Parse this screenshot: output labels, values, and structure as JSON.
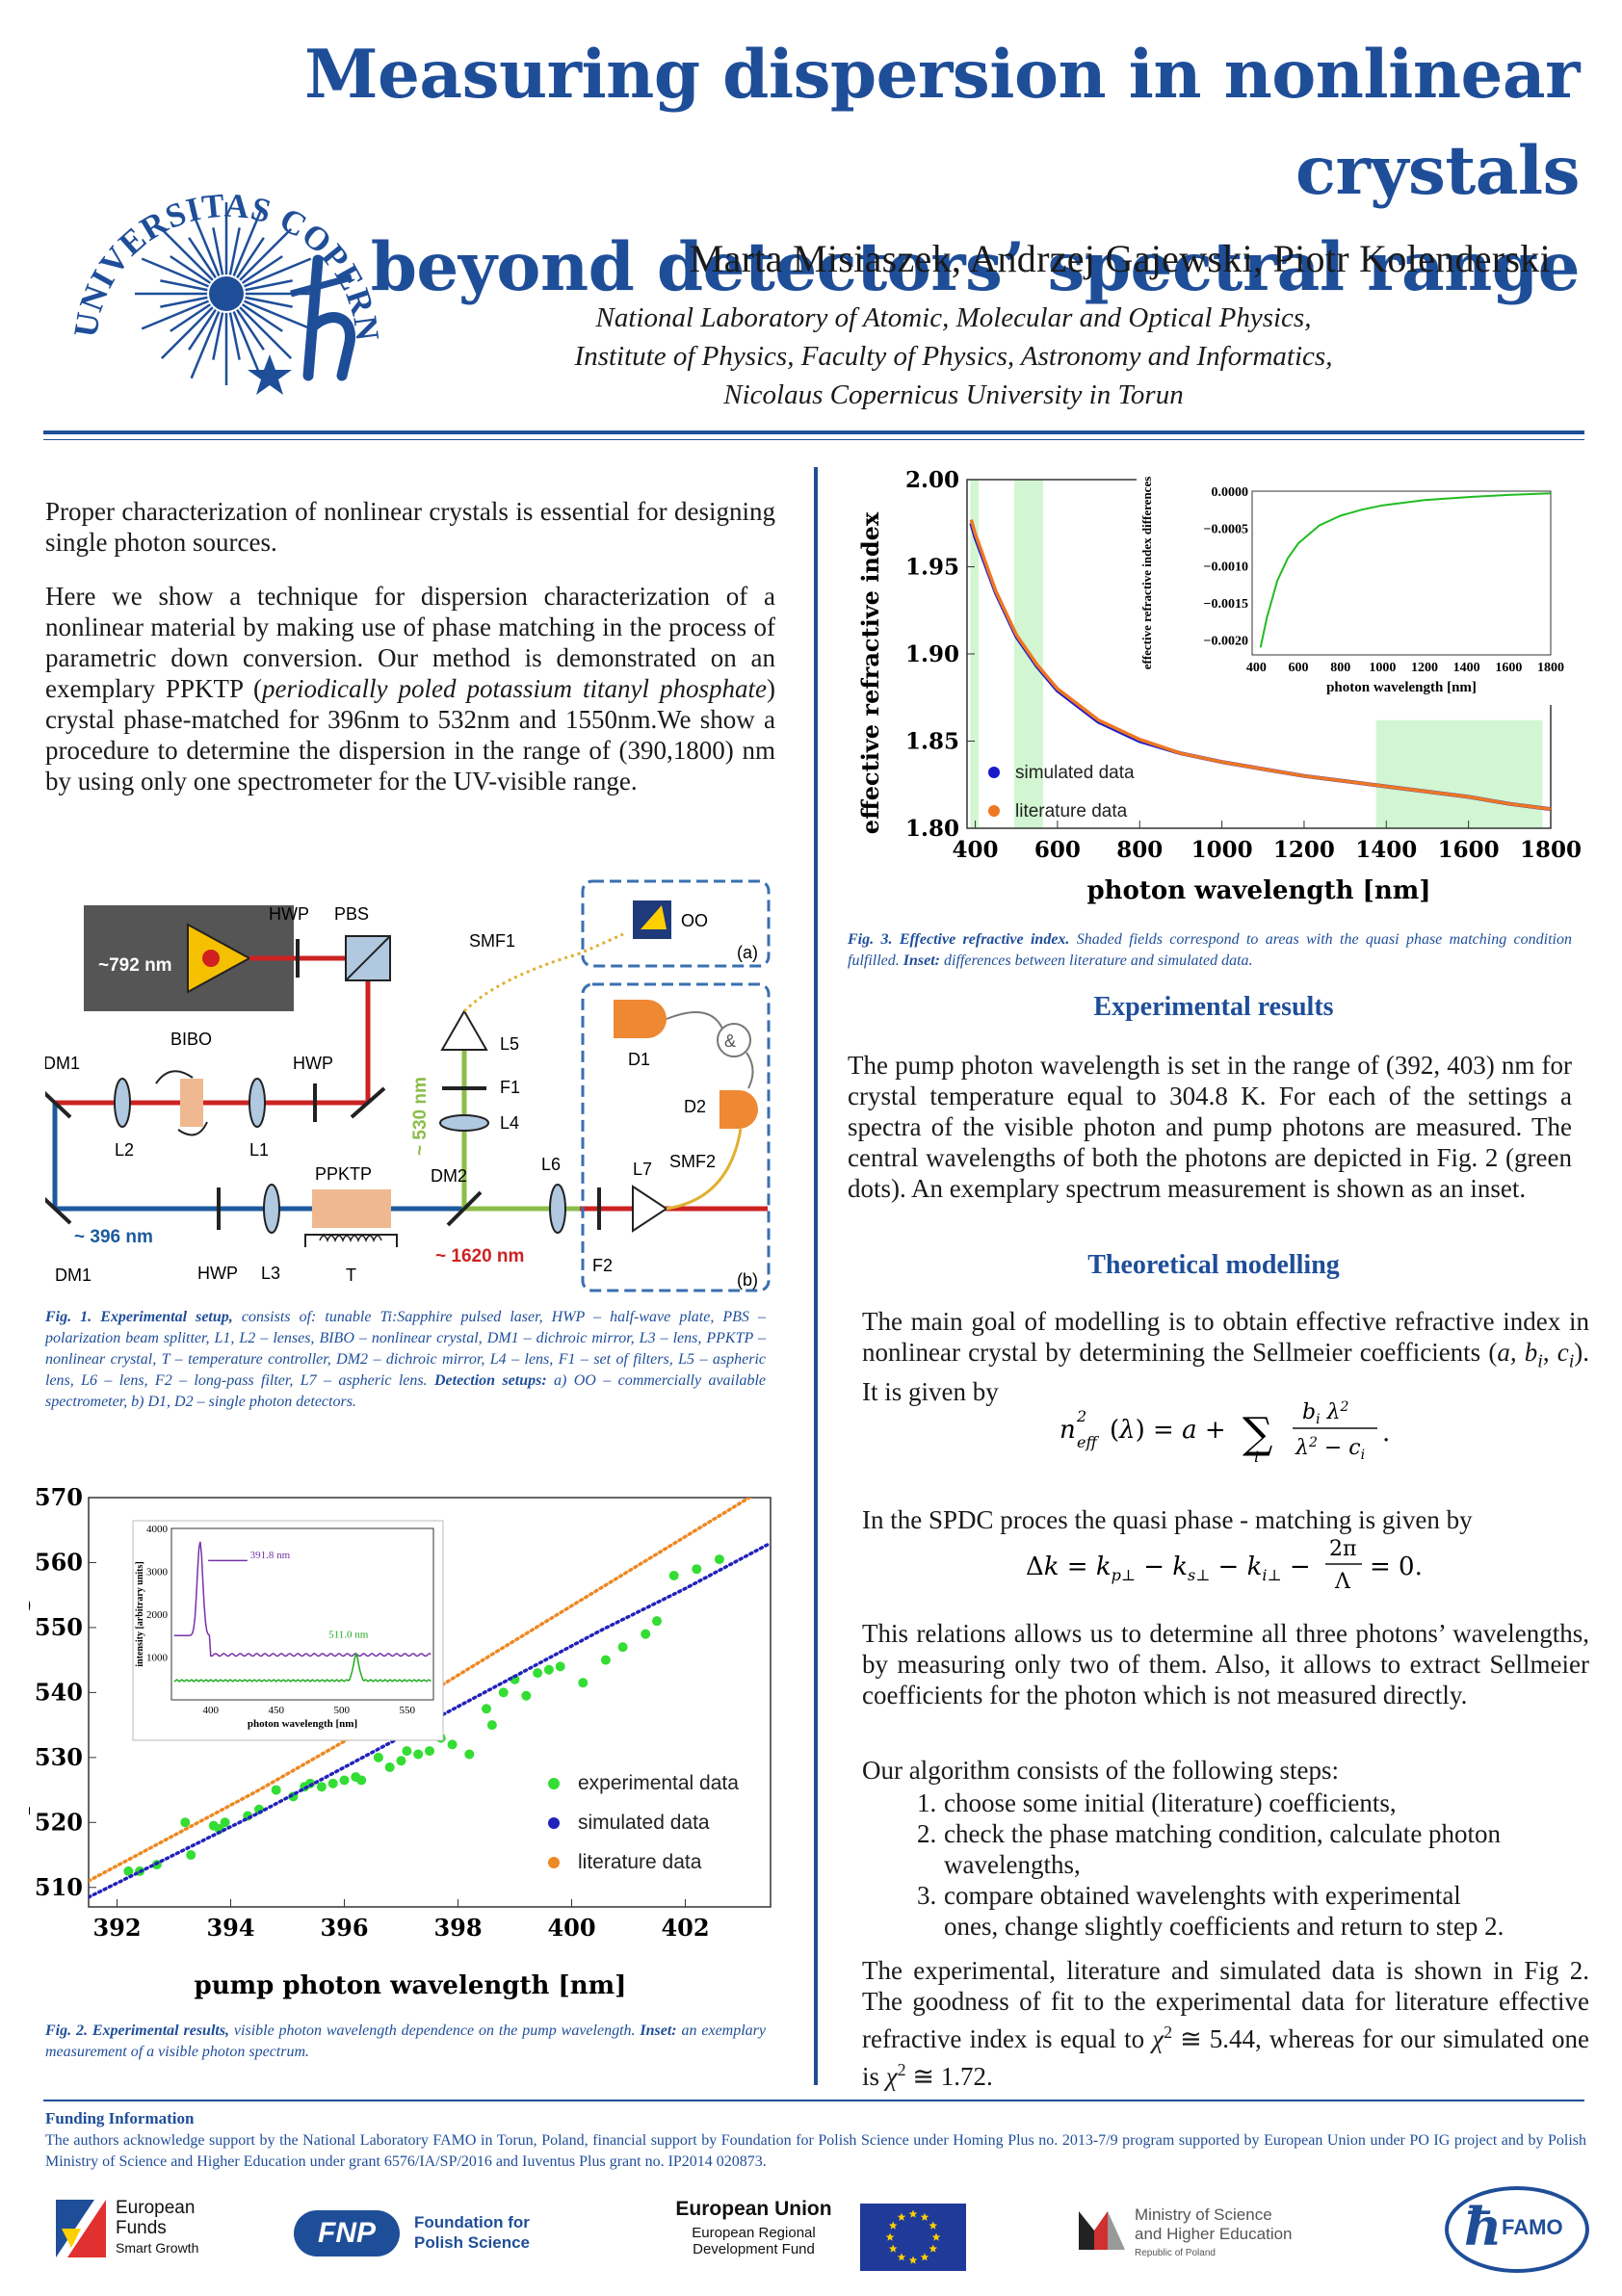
{
  "title": [
    "Measuring dispersion in nonlinear crystals",
    "beyond detectors’ spectral range"
  ],
  "authors": "Marta Misiaszek, Andrzej Gajewski, Piotr Kolenderski",
  "affiliation": [
    "National Laboratory of  Atomic, Molecular and Optical Physics,",
    "Institute of  Physics, Faculty of  Physics, Astronomy and Informatics,",
    "Nicolaus Copernicus University in Torun"
  ],
  "logo": {
    "ring_text": "UNIVERSITAS COPERNICANA THORUNIENSIS",
    "icon": "copernicus-sun-logo"
  },
  "intro": [
    "Proper characterization of nonlinear crystals is essential for designing single photon sources.",
    "Here we show a technique for dispersion characterization of a nonlinear material by making use of phase matching in the process of parametric down conversion. Our method is demonstrated on an exemplary PPKTP (",
    "periodically poled potassium titanyl phosphate",
    ") crystal phase-matched for 396nm to 532nm and 1550nm.We show a procedure to determine the dispersion in the range of (390,1800) nm by using only one spectrometer for the UV-visible range."
  ],
  "fig1": {
    "labels": {
      "laser": "~792 nm",
      "hwp_top": "HWP",
      "pbs": "PBS",
      "smf1": "SMF1",
      "bibo": "BIBO",
      "hwp_mid": "HWP",
      "dm1_top": "DM1",
      "l2": "L2",
      "l1": "L1",
      "l5": "L5",
      "f1": "F1",
      "l4": "L4",
      "nm530": "~ 530 nm",
      "ppktp": "PPKTP",
      "dm2": "DM2",
      "l6": "L6",
      "l7": "L7",
      "nm396": "~ 396 nm",
      "dm1_bot": "DM1",
      "hwp_bot": "HWP",
      "l3": "L3",
      "t": "T",
      "nm1620": "~ 1620 nm",
      "f2": "F2",
      "oo": "OO",
      "a": "(a)",
      "b": "(b)",
      "d1": "D1",
      "d2": "D2",
      "smf2": "SMF2",
      "amp": "&"
    },
    "colors": {
      "red": "#cc2222",
      "blue": "#1c5a9e",
      "green": "#8bbd4a",
      "yellow": "#e0b030",
      "dash": "#3a6fb0",
      "crystal": "#f0b890",
      "detector": "#ee8833"
    },
    "caption_lead": "Fig. 1. Experimental setup,",
    "caption_body": " consists of: tunable Ti:Sapphire pulsed laser, HWP – half-wave plate, PBS – polarization beam splitter, L1, L2 – lenses, BIBO – nonlinear crystal, DM1 – dichroic mirror, L3 – lens, PPKTP – nonlinear crystal, T – temperature controller, DM2 – dichroic mirror, L4 – lens, F1 – set of filters, L5 – aspheric lens, L6 – lens, F2 – long-pass filter, L7 – aspheric lens. ",
    "caption_lead2": "Detection setups:",
    "caption_body2": " a) OO – commercially available spectrometer, b) D1, D2 – single photon detectors."
  },
  "chart_data": [
    {
      "type": "scatter",
      "id": "fig2",
      "xlabel": "pump photon wavelength [nm]",
      "ylabel": "visible photon wavelength [nm]",
      "xlim": [
        391.5,
        403.5
      ],
      "ylim": [
        507,
        570
      ],
      "xticks": [
        392,
        394,
        396,
        398,
        400,
        402
      ],
      "yticks": [
        510,
        520,
        530,
        540,
        550,
        560,
        570
      ],
      "legend_position": "bottom-right",
      "series": [
        {
          "name": "experimental data",
          "color": "#33dd33",
          "style": "dots",
          "x": [
            392.2,
            392.4,
            392.7,
            393.2,
            393.3,
            393.7,
            393.8,
            393.9,
            394.3,
            394.5,
            394.8,
            395.1,
            395.3,
            395.4,
            395.6,
            395.8,
            396.0,
            396.2,
            396.3,
            396.6,
            396.8,
            397.0,
            397.1,
            397.3,
            397.5,
            397.7,
            397.9,
            398.2,
            398.5,
            398.6,
            398.8,
            399.0,
            399.2,
            399.4,
            399.6,
            399.8,
            400.2,
            400.6,
            400.9,
            401.3,
            401.5,
            401.8,
            402.2,
            402.6
          ],
          "y": [
            512.5,
            512.5,
            513.5,
            520,
            515,
            519.5,
            519,
            520,
            521,
            522,
            525,
            524,
            525.5,
            526,
            525.5,
            526,
            526.5,
            527,
            526.5,
            530,
            528.5,
            529.5,
            531,
            530.5,
            531,
            533,
            532,
            530.5,
            537.5,
            535,
            540,
            542,
            539.5,
            543,
            543.5,
            544,
            541.5,
            545,
            547,
            549,
            551,
            558,
            559,
            560.5
          ]
        },
        {
          "name": "simulated data",
          "color": "#2222bb",
          "style": "dotted-line",
          "x": [
            391.5,
            393,
            394.5,
            396,
            397.5,
            399,
            400.5,
            402,
            403.5
          ],
          "y": [
            508.5,
            515,
            521.5,
            528.5,
            535.5,
            542.5,
            549.5,
            556,
            563
          ]
        },
        {
          "name": "literature data",
          "color": "#ee8822",
          "style": "dotted-line",
          "x": [
            391.5,
            393,
            394.5,
            396,
            397.5,
            399,
            400.5,
            402,
            403.5
          ],
          "y": [
            511,
            518,
            525,
            532.5,
            540,
            548,
            556,
            564,
            572
          ]
        }
      ],
      "inset": {
        "xlabel": "photon wavelength [nm]",
        "ylabel": "intensity [arbitrary units]",
        "xticks": [
          400,
          450,
          500,
          550
        ],
        "yticks": [
          1000,
          2000,
          3000,
          4000
        ],
        "peak1_label": "391.8 nm",
        "peak2_label": "511.0 nm"
      }
    },
    {
      "type": "line",
      "id": "fig3",
      "xlabel": "photon wavelength [nm]",
      "ylabel": "effective refractive index",
      "xlim": [
        380,
        1800
      ],
      "ylim": [
        1.8,
        2.0
      ],
      "xticks": [
        400,
        600,
        800,
        1000,
        1200,
        1400,
        1600,
        1800
      ],
      "yticks": [
        "1.80",
        "1.85",
        "1.90",
        "1.95",
        "2.00"
      ],
      "legend_position": "bottom-left",
      "shaded_ranges": [
        [
          388,
          408
        ],
        [
          495,
          565
        ],
        [
          1375,
          1780
        ]
      ],
      "series": [
        {
          "name": "simulated data",
          "color": "#1a1acc",
          "x": [
            390,
            400,
            450,
            500,
            550,
            600,
            700,
            800,
            900,
            1000,
            1100,
            1200,
            1300,
            1400,
            1500,
            1600,
            1700,
            1800
          ],
          "y": [
            1.975,
            1.967,
            1.935,
            1.91,
            1.893,
            1.879,
            1.861,
            1.85,
            1.843,
            1.838,
            1.834,
            1.83,
            1.827,
            1.824,
            1.821,
            1.818,
            1.814,
            1.811
          ]
        },
        {
          "name": "literature data",
          "color": "#ee7722",
          "x": [
            390,
            400,
            450,
            500,
            550,
            600,
            700,
            800,
            900,
            1000,
            1100,
            1200,
            1300,
            1400,
            1500,
            1600,
            1700,
            1800
          ],
          "y": [
            1.977,
            1.969,
            1.936,
            1.911,
            1.894,
            1.88,
            1.862,
            1.851,
            1.843,
            1.838,
            1.834,
            1.83,
            1.827,
            1.824,
            1.821,
            1.818,
            1.814,
            1.811
          ]
        }
      ],
      "inset": {
        "xlabel": "photon wavelength [nm]",
        "ylabel": "effective refractive index differences",
        "xticks": [
          400,
          600,
          800,
          1000,
          1200,
          1400,
          1600,
          1800
        ],
        "yticks": [
          "0.0000",
          "−0.0005",
          "−0.0010",
          "−0.0015",
          "−0.0020"
        ],
        "series": {
          "color": "#22bb22",
          "x": [
            420,
            450,
            500,
            550,
            600,
            700,
            800,
            900,
            1000,
            1200,
            1400,
            1600,
            1800
          ],
          "y": [
            -0.0021,
            -0.0017,
            -0.0012,
            -0.0009,
            -0.0007,
            -0.00046,
            -0.00033,
            -0.00025,
            -0.00019,
            -0.00012,
            -8e-05,
            -5e-05,
            -3e-05
          ]
        }
      }
    }
  ],
  "fig2_caption": {
    "lead": "Fig. 2. Experimental results,",
    "body": " visible photon wavelength dependence on the pump wavelength. ",
    "lead2": "Inset:",
    "body2": " an exemplary measurement of  a visible photon spectrum."
  },
  "fig3_caption": {
    "lead": "Fig. 3. Effective refractive index.",
    "body": " Shaded fields correspond to areas with the quasi phase matching condition fulfilled. ",
    "lead2": "Inset:",
    "body2": " differences between literature and simulated data."
  },
  "results": {
    "heading": "Experimental results",
    "text": "The pump photon wavelength is set in the range of (392, 403) nm for crystal temperature equal to 304.8 K. For each of the settings a spectra of the visible photon and pump photons are measured. The central wavelengths of both the photons are depicted in Fig. 2 (green dots). An exemplary spectrum measurement is shown as an inset."
  },
  "theory": {
    "heading": "Theoretical modelling",
    "p1": "The main goal of modelling is to obtain effective refractive index in nonlinear crystal by determining the Sellmeier coefficients (",
    "p1_math": "a, b",
    "p1_end": "). It is given by",
    "p2": "In the SPDC proces the quasi phase - matching is given by",
    "p3": "This relations allows us to determine all three photons’ wavelengths, by measuring only two of them. Also, it allows to extract Sellmeier coefficients for the photon which is not measured directly.",
    "p4": "Our algorithm consists of the following steps:",
    "steps": [
      {
        "num": "1.",
        "text": "choose some initial (literature) coefficients,"
      },
      {
        "num": "2.",
        "text": "check the phase matching condition, calculate photon",
        "cont": "wavelengths,"
      },
      {
        "num": "3.",
        "text": "compare obtained wavelenghts with experimental",
        "cont": "ones, change slightly coefficients and return to step 2."
      }
    ],
    "p5a": "The experimental, literature and simulated data is shown in Fig 2. The goodness of fit to the experimental data for literature effective refractive index is equal to ",
    "chi1": "≅ 5.44,",
    "p5b": "whereas for our simulated one is ",
    "chi2": "≅ 1.72."
  },
  "funding": {
    "heading": "Funding Information",
    "text": "The authors acknowledge support by the National Laboratory FAMO in Torun, Poland, financial support by Foundation for Polish Science under Homing Plus no. 2013-7/9 program supported by European Union under PO IG project and by Polish Ministry of  Science and Higher Education under grant 6576/IA/SP/2016 and Iuventus Plus grant no. IP2014 020873."
  },
  "logos": {
    "eu_funds": [
      "European",
      "Funds",
      "Smart Growth"
    ],
    "fnp": [
      "FNP",
      "Foundation for",
      "Polish Science"
    ],
    "eu": [
      "European Union",
      "European Regional",
      "Development Fund"
    ],
    "ministry": [
      "Ministry of Science",
      "and Higher Education",
      "Republic of Poland"
    ],
    "famo": "FAMO"
  },
  "colors": {
    "accent": "#1f4e99"
  }
}
